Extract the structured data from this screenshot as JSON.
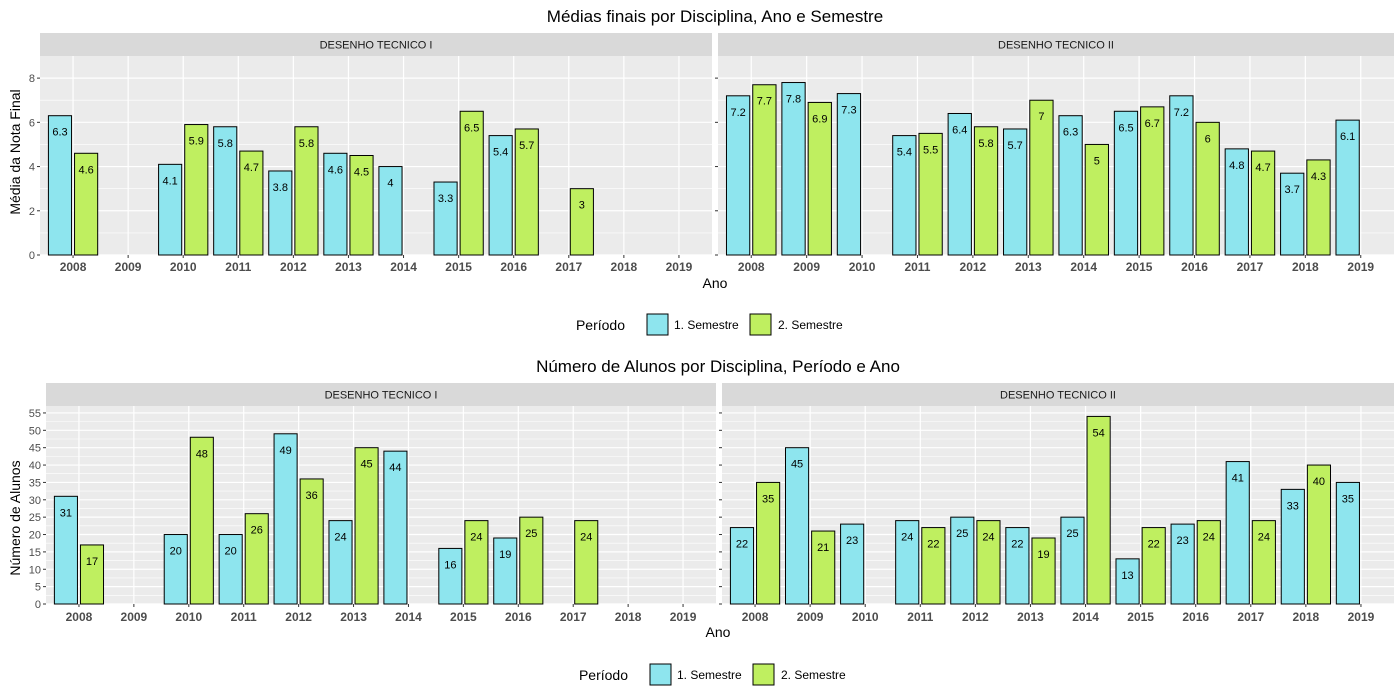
{
  "colors": {
    "panel_bg": "#ebebeb",
    "strip_bg": "#d9d9d9",
    "grid": "#ffffff",
    "bar_stroke": "#000000",
    "series_1": "#8ee5ee",
    "series_2": "#bfef60"
  },
  "chart_data": [
    {
      "type": "bar",
      "title": "Médias finais por Disciplina, Ano e Semestre",
      "xlabel": "Ano",
      "ylabel": "Média da Nota Final",
      "ylim": [
        0,
        9
      ],
      "yticks": [
        0,
        2,
        4,
        6,
        8
      ],
      "grid": true,
      "legend": {
        "title": "Período",
        "position": "bottom",
        "labels": [
          "1. Semestre",
          "2. Semestre"
        ]
      },
      "categories": [
        "2008",
        "2009",
        "2010",
        "2011",
        "2012",
        "2013",
        "2014",
        "2015",
        "2016",
        "2017",
        "2018",
        "2019"
      ],
      "facets": [
        {
          "label": "DESENHO TECNICO I",
          "series": [
            {
              "name": "1. Semestre",
              "values": [
                6.3,
                null,
                4.1,
                5.8,
                3.8,
                4.6,
                4,
                3.3,
                5.4,
                null,
                null,
                null
              ]
            },
            {
              "name": "2. Semestre",
              "values": [
                4.6,
                null,
                5.9,
                4.7,
                5.8,
                4.5,
                null,
                6.5,
                5.7,
                3,
                null,
                null
              ]
            }
          ]
        },
        {
          "label": "DESENHO TECNICO II",
          "series": [
            {
              "name": "1. Semestre",
              "values": [
                7.2,
                7.8,
                7.3,
                5.4,
                6.4,
                5.7,
                6.3,
                6.5,
                7.2,
                4.8,
                3.7,
                6.1
              ]
            },
            {
              "name": "2. Semestre",
              "values": [
                7.7,
                6.9,
                null,
                5.5,
                5.8,
                7,
                5,
                6.7,
                6,
                4.7,
                4.3,
                null
              ]
            }
          ]
        }
      ]
    },
    {
      "type": "bar",
      "title": "Número de Alunos por Disciplina, Período e Ano",
      "xlabel": "Ano",
      "ylabel": "Número de Alunos",
      "ylim": [
        0,
        57
      ],
      "yticks": [
        0,
        5,
        10,
        15,
        20,
        25,
        30,
        35,
        40,
        45,
        50,
        55
      ],
      "grid": true,
      "legend": {
        "title": "Período",
        "position": "bottom",
        "labels": [
          "1. Semestre",
          "2. Semestre"
        ]
      },
      "categories": [
        "2008",
        "2009",
        "2010",
        "2011",
        "2012",
        "2013",
        "2014",
        "2015",
        "2016",
        "2017",
        "2018",
        "2019"
      ],
      "facets": [
        {
          "label": "DESENHO TECNICO I",
          "series": [
            {
              "name": "1. Semestre",
              "values": [
                31,
                null,
                20,
                20,
                49,
                24,
                44,
                16,
                19,
                null,
                null,
                null
              ]
            },
            {
              "name": "2. Semestre",
              "values": [
                17,
                null,
                48,
                26,
                36,
                45,
                null,
                24,
                25,
                24,
                null,
                null
              ]
            }
          ]
        },
        {
          "label": "DESENHO TECNICO II",
          "series": [
            {
              "name": "1. Semestre",
              "values": [
                22,
                45,
                23,
                24,
                25,
                22,
                25,
                13,
                23,
                41,
                33,
                35
              ]
            },
            {
              "name": "2. Semestre",
              "values": [
                35,
                21,
                null,
                22,
                24,
                19,
                54,
                22,
                24,
                24,
                40,
                null
              ]
            }
          ]
        }
      ]
    }
  ]
}
